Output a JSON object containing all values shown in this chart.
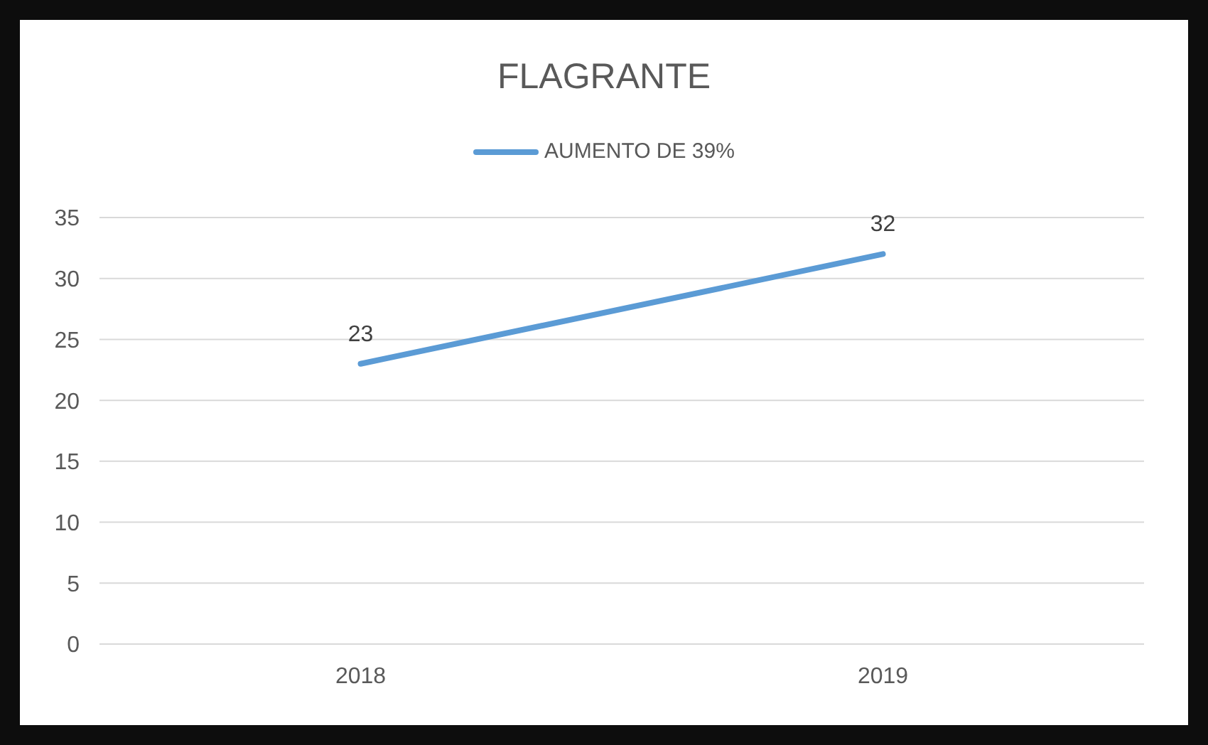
{
  "chart_data": {
    "type": "line",
    "title": "FLAGRANTE",
    "categories": [
      "2018",
      "2019"
    ],
    "series": [
      {
        "name": "AUMENTO DE 39%",
        "color": "#5b9bd5",
        "values": [
          23,
          32
        ]
      }
    ],
    "ylim": [
      0,
      35
    ],
    "yticks": [
      0,
      5,
      10,
      15,
      20,
      25,
      30,
      35
    ],
    "grid": "y",
    "legend": "top",
    "data_labels": true,
    "marker": "none",
    "line_style": "solid"
  }
}
